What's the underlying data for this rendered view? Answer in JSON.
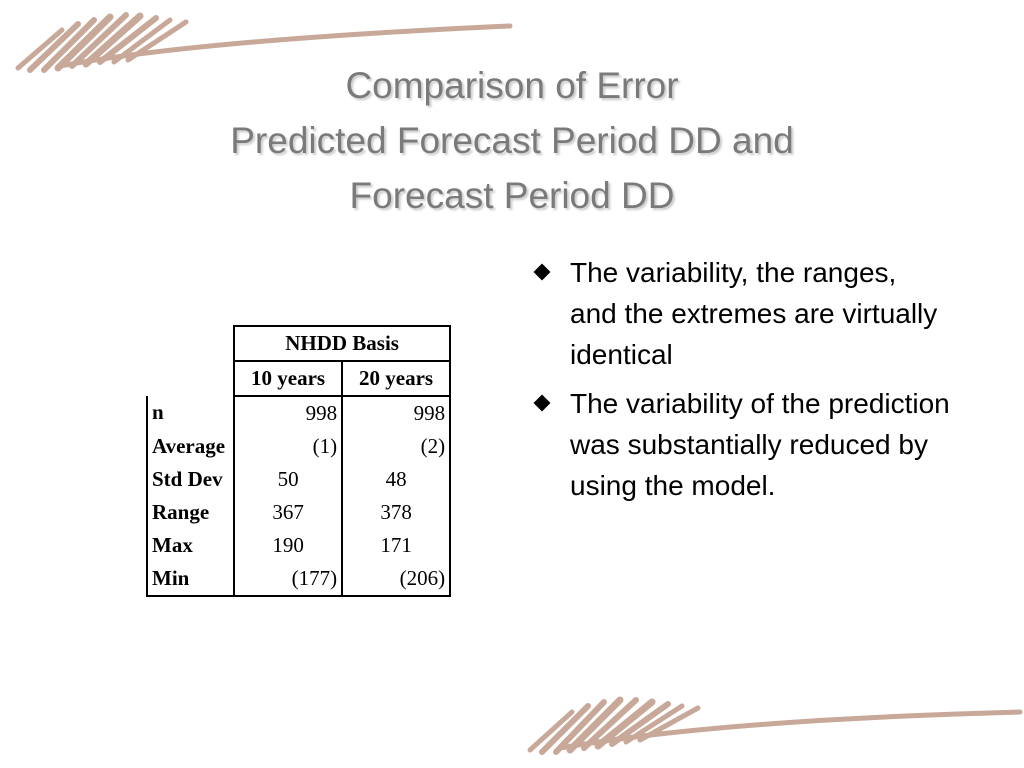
{
  "title": {
    "line1": "Comparison of Error",
    "line2": "Predicted Forecast Period DD and",
    "line3": "Forecast Period DD"
  },
  "table": {
    "group_header": "NHDD Basis",
    "col_headers": [
      "10 years",
      "20 years"
    ],
    "rows": [
      {
        "label": "n",
        "v10": "998",
        "v20": "998"
      },
      {
        "label": "Average",
        "v10": "(1)",
        "v20": "(2)"
      },
      {
        "label": "Std Dev",
        "v10": "50",
        "v20": "48"
      },
      {
        "label": "Range",
        "v10": "367",
        "v20": "378"
      },
      {
        "label": "Max",
        "v10": "190",
        "v20": "171"
      },
      {
        "label": "Min",
        "v10": "(177)",
        "v20": "(206)"
      }
    ]
  },
  "bullets": [
    "The variability, the ranges, and the extremes are virtually identical",
    "The variability of the prediction was substantially reduced by using the model."
  ],
  "colors": {
    "title": "#7a7a7a",
    "decoration": "#c8a898"
  },
  "icons": {
    "bullet": "diamond-bullet-icon",
    "decoration": "brush-stroke-decoration"
  }
}
